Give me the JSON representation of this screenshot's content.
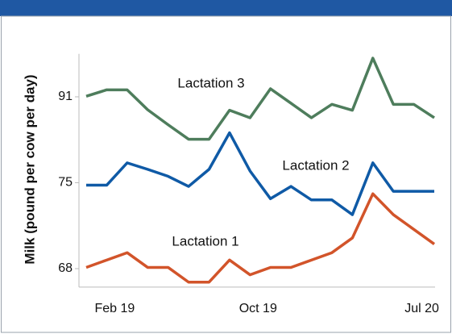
{
  "chart_data": {
    "type": "line",
    "y_label": "Milk (pound per cow per day)",
    "categories": [
      null,
      "Feb 19",
      null,
      null,
      null,
      null,
      null,
      null,
      "Oct 19",
      null,
      null,
      null,
      null,
      null,
      null,
      null,
      "Jul 20",
      null
    ],
    "series": [
      {
        "name": "Lactation 3",
        "color": "#4e7d5c",
        "values": [
          91.1,
          92.3,
          92.3,
          88.6,
          85.8,
          83.1,
          83.1,
          88.5,
          87.1,
          92.5,
          89.8,
          87.1,
          89.6,
          88.5,
          98.2,
          89.6,
          89.6,
          87.1
        ]
      },
      {
        "name": "Lactation 2",
        "color": "#0f5aa6",
        "values": [
          74.8,
          74.8,
          78.7,
          77.5,
          76.2,
          74.7,
          77.5,
          84.3,
          77.2,
          73.7,
          74.7,
          73.6,
          73.6,
          72.4,
          78.7,
          74.3,
          74.3,
          74.3
        ]
      },
      {
        "name": "Lactation 1",
        "color": "#d2542a",
        "values": [
          68.1,
          68.7,
          69.3,
          68.1,
          68.1,
          66.9,
          66.9,
          68.7,
          67.5,
          68.1,
          68.1,
          68.7,
          69.3,
          70.5,
          74.1,
          72.4,
          71.2,
          70.0
        ]
      }
    ],
    "ylim": [
      66.5,
      99
    ],
    "yticks": [
      68,
      75,
      91
    ],
    "grid": false
  }
}
